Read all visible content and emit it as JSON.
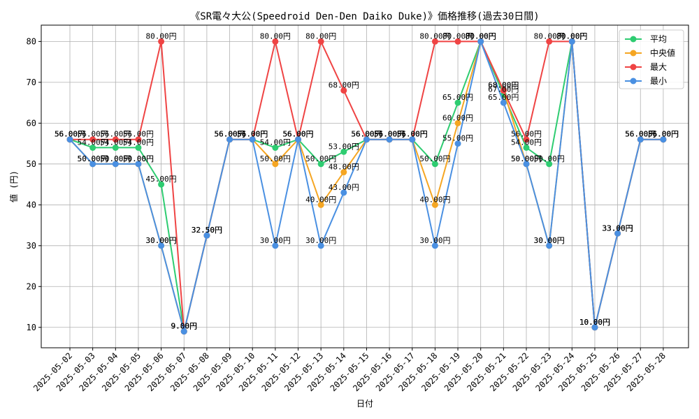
{
  "chart_data": {
    "type": "line",
    "title": "《SR電々大公(Speedroid Den-Den Daiko Duke)》価格推移(過去30日間)",
    "xlabel": "日付",
    "ylabel": "値 (円)",
    "ylim": [
      5,
      84
    ],
    "yticks": [
      10,
      20,
      30,
      40,
      50,
      60,
      70,
      80
    ],
    "grid": true,
    "legend_position": "top-right",
    "value_suffix": "円",
    "categories": [
      "2025-05-02",
      "2025-05-03",
      "2025-05-04",
      "2025-05-05",
      "2025-05-06",
      "2025-05-07",
      "2025-05-08",
      "2025-05-09",
      "2025-05-10",
      "2025-05-11",
      "2025-05-12",
      "2025-05-13",
      "2025-05-14",
      "2025-05-15",
      "2025-05-16",
      "2025-05-17",
      "2025-05-18",
      "2025-05-19",
      "2025-05-20",
      "2025-05-21",
      "2025-05-22",
      "2025-05-23",
      "2025-05-24",
      "2025-05-25",
      "2025-05-26",
      "2025-05-27",
      "2025-05-28"
    ],
    "series": [
      {
        "name": "平均",
        "color": "#2ecc71",
        "values": [
          56,
          54,
          54,
          54,
          45,
          9,
          32.5,
          56,
          56,
          54,
          56,
          50,
          53,
          56,
          56,
          56,
          50,
          65,
          80,
          67,
          54,
          50,
          80,
          10,
          33,
          56,
          56
        ]
      },
      {
        "name": "中央値",
        "color": "#f5a623",
        "values": [
          56,
          50,
          50,
          50,
          30,
          9,
          32.5,
          56,
          56,
          50,
          56,
          40,
          48,
          56,
          56,
          56,
          40,
          60,
          80,
          68,
          50,
          30,
          80,
          10,
          33,
          56,
          56
        ]
      },
      {
        "name": "最大",
        "color": "#ef4444",
        "values": [
          56,
          56,
          56,
          56,
          80,
          9,
          32.5,
          56,
          56,
          80,
          56,
          80,
          68,
          56,
          56,
          56,
          80,
          80,
          80,
          68,
          56,
          80,
          80,
          10,
          33,
          56,
          56
        ]
      },
      {
        "name": "最小",
        "color": "#4a90e2",
        "values": [
          56,
          50,
          50,
          50,
          30,
          9,
          32.5,
          56,
          56,
          30,
          56,
          30,
          43,
          56,
          56,
          56,
          30,
          55,
          80,
          65,
          50,
          30,
          80,
          10,
          33,
          56,
          56
        ]
      }
    ]
  }
}
